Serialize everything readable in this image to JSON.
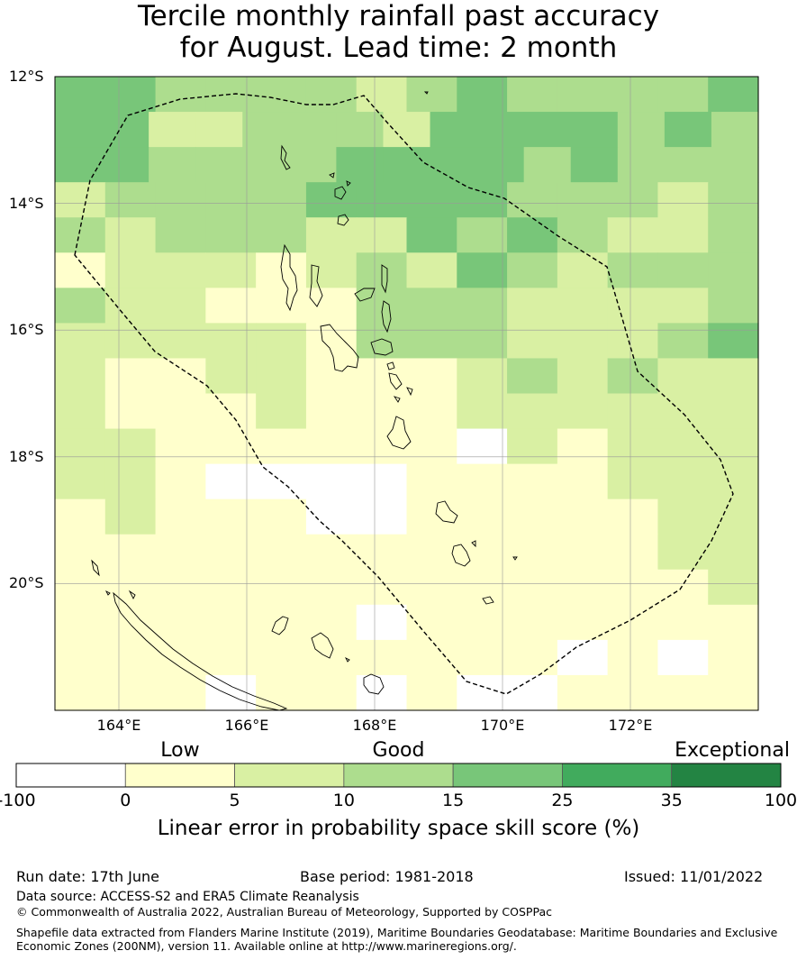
{
  "title_line1": "Tercile monthly rainfall past accuracy",
  "title_line2": "for August. Lead time: 2 month",
  "map": {
    "lon_min": 163,
    "lon_max": 174,
    "lat_top": -12,
    "lat_bottom": -22,
    "lat_labels": [
      "12°S",
      "14°S",
      "16°S",
      "18°S",
      "20°S"
    ],
    "lon_labels": [
      "164°E",
      "166°E",
      "168°E",
      "170°E",
      "172°E"
    ],
    "grid_lines": true,
    "cell_levels_note": "levels: 0=<0, 1=0-5, 2=5-10, 3=10-15, 4=15-25",
    "cells": [
      [
        4,
        4,
        3,
        3,
        3,
        3,
        2,
        3,
        4,
        3,
        3,
        3,
        3,
        4
      ],
      [
        4,
        4,
        2,
        2,
        3,
        3,
        3,
        2,
        4,
        4,
        4,
        4,
        3,
        4,
        3
      ],
      [
        4,
        4,
        3,
        3,
        3,
        3,
        4,
        4,
        4,
        4,
        3,
        4,
        3,
        3,
        3
      ],
      [
        2,
        3,
        3,
        3,
        3,
        4,
        4,
        4,
        4,
        3,
        3,
        3,
        2,
        3
      ],
      [
        3,
        2,
        3,
        3,
        3,
        2,
        2,
        4,
        3,
        4,
        3,
        2,
        2,
        3
      ],
      [
        1,
        2,
        2,
        2,
        1,
        2,
        3,
        2,
        4,
        3,
        2,
        3,
        3,
        3
      ],
      [
        3,
        2,
        2,
        1,
        1,
        1,
        3,
        3,
        3,
        2,
        2,
        2,
        2,
        3
      ],
      [
        2,
        2,
        2,
        2,
        2,
        1,
        3,
        3,
        3,
        2,
        2,
        2,
        3,
        4
      ],
      [
        2,
        1,
        1,
        2,
        2,
        1,
        1,
        1,
        2,
        3,
        2,
        3,
        2,
        2
      ],
      [
        2,
        1,
        1,
        1,
        2,
        1,
        1,
        1,
        2,
        2,
        2,
        2,
        2,
        2
      ],
      [
        2,
        2,
        1,
        1,
        1,
        1,
        1,
        1,
        0,
        2,
        1,
        2,
        2,
        2
      ],
      [
        2,
        2,
        1,
        0,
        0,
        0,
        0,
        1,
        1,
        1,
        1,
        2,
        2,
        2
      ],
      [
        1,
        2,
        1,
        1,
        1,
        0,
        0,
        1,
        1,
        1,
        1,
        1,
        2,
        2
      ],
      [
        1,
        1,
        1,
        1,
        1,
        1,
        1,
        1,
        1,
        1,
        1,
        1,
        2,
        2
      ],
      [
        1,
        1,
        1,
        1,
        1,
        1,
        1,
        1,
        1,
        1,
        1,
        1,
        1,
        2
      ],
      [
        1,
        1,
        1,
        1,
        1,
        1,
        0,
        1,
        1,
        1,
        1,
        1,
        1,
        1
      ],
      [
        1,
        1,
        1,
        1,
        1,
        1,
        1,
        1,
        1,
        1,
        0,
        1,
        0,
        1
      ],
      [
        1,
        1,
        1,
        0,
        1,
        1,
        0,
        1,
        0,
        0,
        1,
        1,
        1,
        1
      ]
    ]
  },
  "colorbar": {
    "category_labels": [
      "Low",
      "Good",
      "Exceptional"
    ],
    "tick_labels": [
      "-100",
      "0",
      "5",
      "10",
      "15",
      "25",
      "35",
      "100"
    ],
    "colors": [
      "#ffffff",
      "#ffffcc",
      "#d9f0a3",
      "#addd8e",
      "#78c679",
      "#41ab5d",
      "#238443"
    ],
    "axis_label": "Linear error in probability space skill score (%)"
  },
  "footer": {
    "run_date": "Run date: 17th June",
    "base_period": "Base period: 1981-2018",
    "issued": "Issued: 11/01/2022",
    "data_source": "Data source: ACCESS-S2 and ERA5 Climate Reanalysis",
    "copyright": "© Commonwealth of Australia 2022, Australian Bureau of Meteorology, Supported by COSPPac",
    "shapefile_line1": "Shapefile data extracted from Flanders Marine Institute (2019), Maritime Boundaries Geodatabase: Maritime Boundaries and Exclusive",
    "shapefile_line2": "Economic Zones (200NM), version 11. Available online at http://www.marineregions.org/."
  }
}
